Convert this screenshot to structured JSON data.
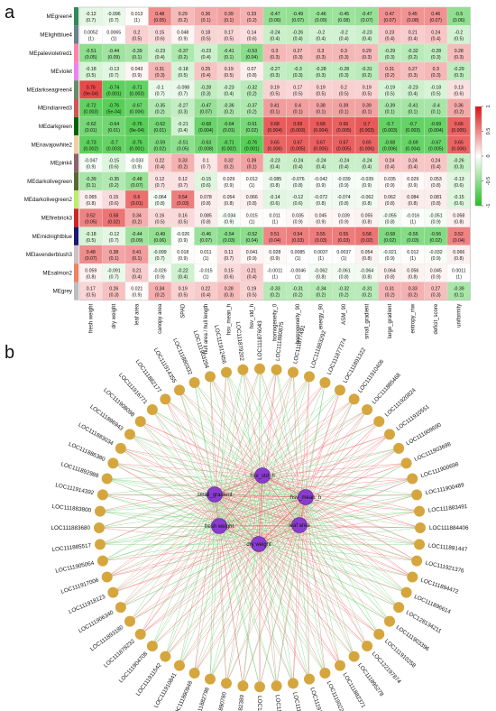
{
  "panels": {
    "a": "a",
    "b": "b"
  },
  "heatmap": {
    "rows": [
      {
        "name": "MEgreen4",
        "color": "#2e8b57"
      },
      {
        "name": "MElightblue4",
        "color": "#68838b"
      },
      {
        "name": "MEpalevioletred1",
        "color": "#ff82ab"
      },
      {
        "name": "MEviolet",
        "color": "#ee82ee"
      },
      {
        "name": "MEdarkseagreen4",
        "color": "#698b69"
      },
      {
        "name": "MEindianred3",
        "color": "#cd5555"
      },
      {
        "name": "MEdarkgreen",
        "color": "#006400"
      },
      {
        "name": "MEnavajowhite2",
        "color": "#eecfa1"
      },
      {
        "name": "MEpink4",
        "color": "#8b636c"
      },
      {
        "name": "MEdarkolivegreen",
        "color": "#556b2f"
      },
      {
        "name": "MEdarkolivegreen2",
        "color": "#bcee68"
      },
      {
        "name": "MEfirebrick3",
        "color": "#cd2626"
      },
      {
        "name": "MEmidnightblue",
        "color": "#191970"
      },
      {
        "name": "MElavenderblush3",
        "color": "#cdc1c5"
      },
      {
        "name": "MEsalmon2",
        "color": "#ee8262"
      },
      {
        "name": "MEgrey",
        "color": "#bebebe"
      }
    ],
    "columns": [
      "fresh weight",
      "dry weight",
      "leaf area",
      "canopy area",
      "SPAD",
      "hull area / hull length",
      "hsv_mean_h",
      "hsv_std_h",
      "homogeneity_0",
      "homogeneity_90",
      "energy_90",
      "ASM_90",
      "small_gradient",
      "large_gradient",
      "entropy_mw",
      "deficit_score",
      "uniformity"
    ],
    "corr": [
      [
        -0.12,
        -0.096,
        0.013,
        0.48,
        0.29,
        0.36,
        0.39,
        0.33,
        -0.47,
        -0.49,
        -0.46,
        -0.45,
        -0.47,
        0.47,
        0.45,
        0.46,
        -0.5
      ],
      [
        0.0052,
        0.0065,
        0.2,
        0.15,
        0.048,
        0.18,
        0.17,
        0.14,
        -0.24,
        -0.26,
        -0.2,
        -0.2,
        -0.23,
        0.23,
        0.21,
        0.24,
        -0.2
      ],
      [
        -0.51,
        -0.44,
        -0.39,
        -0.23,
        -0.37,
        -0.23,
        -0.41,
        -0.53,
        0.3,
        0.27,
        0.3,
        0.3,
        0.29,
        -0.29,
        -0.32,
        -0.28,
        0.28
      ],
      [
        -0.18,
        -0.13,
        0.043,
        0.31,
        -0.18,
        0.25,
        0.19,
        0.07,
        -0.27,
        -0.3,
        -0.28,
        -0.28,
        -0.31,
        0.31,
        0.27,
        0.3,
        -0.29
      ],
      [
        0.76,
        -0.74,
        -0.71,
        -0.1,
        -0.098,
        -0.28,
        -0.23,
        -0.32,
        0.19,
        0.17,
        0.19,
        0.2,
        0.19,
        -0.19,
        -0.23,
        -0.18,
        0.13
      ],
      [
        -0.72,
        -0.76,
        -0.67,
        -0.35,
        -0.27,
        -0.47,
        -0.36,
        -0.37,
        0.41,
        0.4,
        0.38,
        0.39,
        0.39,
        -0.39,
        -0.41,
        -0.4,
        0.36
      ],
      [
        -0.62,
        -0.64,
        -0.76,
        -0.62,
        -0.21,
        -0.68,
        -0.64,
        -0.61,
        0.68,
        0.69,
        0.68,
        0.66,
        0.7,
        -0.7,
        -0.7,
        -0.69,
        0.66
      ],
      [
        -0.73,
        -0.7,
        -0.75,
        -0.59,
        -0.51,
        -0.63,
        -0.71,
        -0.76,
        0.65,
        0.67,
        0.67,
        0.67,
        0.65,
        -0.68,
        -0.69,
        -0.67,
        0.65
      ],
      [
        -0.047,
        -0.15,
        -0.033,
        0.22,
        0.33,
        0.1,
        0.32,
        0.39,
        -0.23,
        -0.24,
        -0.24,
        -0.24,
        -0.24,
        0.24,
        0.24,
        0.24,
        -0.26
      ],
      [
        -0.39,
        -0.35,
        -0.48,
        0.12,
        0.12,
        -0.15,
        0.029,
        0.012,
        -0.085,
        -0.076,
        -0.042,
        -0.039,
        -0.039,
        0.035,
        0.029,
        0.053,
        -0.13
      ],
      [
        0.065,
        0.15,
        0.6,
        -0.064,
        0.54,
        0.078,
        0.054,
        0.066,
        -0.14,
        -0.12,
        -0.072,
        -0.074,
        -0.062,
        0.062,
        0.084,
        0.081,
        -0.15
      ],
      [
        0.52,
        0.58,
        0.34,
        0.16,
        0.16,
        0.085,
        -0.034,
        0.015,
        0.011,
        0.035,
        0.045,
        0.039,
        0.055,
        -0.055,
        -0.016,
        -0.051,
        0.058
      ],
      [
        -0.18,
        -0.12,
        -0.44,
        -0.49,
        -0.026,
        -0.46,
        -0.54,
        -0.52,
        0.51,
        0.54,
        0.55,
        0.55,
        0.58,
        -0.58,
        -0.55,
        -0.56,
        0.52
      ],
      [
        0.48,
        0.38,
        0.41,
        -0.099,
        0.018,
        0.011,
        0.11,
        0.041,
        0.028,
        0.0085,
        0.0037,
        0.0037,
        0.054,
        -0.021,
        0.012,
        -0.032,
        0.066
      ],
      [
        0.059,
        -0.091,
        0.21,
        -0.026,
        -0.22,
        -0.015,
        0.15,
        0.21,
        -0.0011,
        -0.0046,
        -0.062,
        -0.061,
        -0.064,
        0.064,
        0.056,
        0.045,
        0.0011
      ],
      [
        0.17,
        0.26,
        0.021,
        0.34,
        0.19,
        0.22,
        0.28,
        0.19,
        -0.33,
        -0.31,
        -0.34,
        -0.32,
        -0.31,
        0.31,
        0.33,
        0.27,
        -0.39
      ]
    ],
    "pvals": [
      [
        "(0.7)",
        "(0.7)",
        "(1)",
        "(0.05)",
        "(0.2)",
        "(0.1)",
        "(0.1)",
        "(0.2)",
        "(0.06)",
        "(0.07)",
        "(0.09)",
        "(0.08)",
        "(0.07)",
        "(0.07)",
        "(0.08)",
        "(0.07)",
        "(0.06)"
      ],
      [
        "(1)",
        "(1)",
        "(0.5)",
        "(0.6)",
        "(0.9)",
        "(0.5)",
        "(0.5)",
        "(0.6)",
        "(0.4)",
        "(0.4)",
        "(0.4)",
        "(0.4)",
        "(0.4)",
        "(0.4)",
        "(0.4)",
        "(0.4)",
        "(0.5)"
      ],
      [
        "(0.05)",
        "(0.09)",
        "(0.1)",
        "(0.4)",
        "(0.2)",
        "(0.4)",
        "(0.1)",
        "(0.04)",
        "(0.3)",
        "(0.3)",
        "(0.3)",
        "(0.3)",
        "(0.3)",
        "(0.3)",
        "(0.2)",
        "(0.3)",
        "(0.3)"
      ],
      [
        "(0.5)",
        "(0.7)",
        "(0.9)",
        "(0.3)",
        "(0.5)",
        "(0.4)",
        "(0.5)",
        "(0.8)",
        "(0.3)",
        "(0.3)",
        "(0.3)",
        "(0.3)",
        "(0.2)",
        "(0.2)",
        "(0.3)",
        "(0.3)",
        "(0.3)"
      ],
      [
        "(9e-04)",
        "(0.001)",
        "(0.003)",
        "(0.7)",
        "(0.7)",
        "(0.3)",
        "(0.4)",
        "(0.2)",
        "(0.5)",
        "(0.5)",
        "(0.5)",
        "(0.5)",
        "(0.5)",
        "(0.5)",
        "(0.4)",
        "(0.5)",
        "(0.6)"
      ],
      [
        "(0.003)",
        "(5e-04)",
        "(0.006)",
        "(0.2)",
        "(0.3)",
        "(0.07)",
        "(0.2)",
        "(0.2)",
        "(0.1)",
        "(0.1)",
        "(0.1)",
        "(0.1)",
        "(0.1)",
        "(0.1)",
        "(0.1)",
        "(0.1)",
        "(0.2)"
      ],
      [
        "(0.01)",
        "(0.01)",
        "(9e-04)",
        "(0.01)",
        "(0.4)",
        "(0.004)",
        "(0.01)",
        "(0.02)",
        "(0.004)",
        "(0.003)",
        "(0.004)",
        "(0.005)",
        "(0.003)",
        "(0.003)",
        "(0.003)",
        "(0.004)",
        "(0.005)"
      ],
      [
        "(0.002)",
        "(0.003)",
        "(0.001)",
        "(0.02)",
        "(0.05)",
        "(0.008)",
        "(0.002)",
        "(0.001)",
        "(0.006)",
        "(0.005)",
        "(0.005)",
        "(0.005)",
        "(0.006)",
        "(0.006)",
        "(0.004)",
        "(0.005)",
        "(0.006)"
      ],
      [
        "(0.9)",
        "(0.6)",
        "(0.9)",
        "(0.4)",
        "(0.2)",
        "(0.7)",
        "(0.2)",
        "(0.1)",
        "(0.4)",
        "(0.4)",
        "(0.4)",
        "(0.4)",
        "(0.4)",
        "(0.4)",
        "(0.4)",
        "(0.4)",
        "(0.3)"
      ],
      [
        "(0.1)",
        "(0.2)",
        "(0.07)",
        "(0.7)",
        "(0.7)",
        "(0.6)",
        "(0.9)",
        "(1)",
        "(0.8)",
        "(0.8)",
        "(0.9)",
        "(0.9)",
        "(0.9)",
        "(0.9)",
        "(0.9)",
        "(0.8)",
        "(0.6)"
      ],
      [
        "(0.8)",
        "(0.6)",
        "(0.01)",
        "(0.8)",
        "(0.03)",
        "(0.8)",
        "(0.8)",
        "(0.8)",
        "(0.6)",
        "(0.6)",
        "(0.8)",
        "(0.8)",
        "(0.8)",
        "(0.8)",
        "(0.8)",
        "(0.8)",
        "(0.6)"
      ],
      [
        "(0.05)",
        "(0.02)",
        "(0.2)",
        "(0.5)",
        "(0.5)",
        "(0.8)",
        "(0.9)",
        "(1)",
        "(1)",
        "(0.9)",
        "(0.9)",
        "(0.9)",
        "(0.8)",
        "(0.8)",
        "(1)",
        "(0.9)",
        "(0.8)"
      ],
      [
        "(0.5)",
        "(0.7)",
        "(0.09)",
        "(0.06)",
        "(0.9)",
        "(0.07)",
        "(0.03)",
        "(0.04)",
        "(0.04)",
        "(0.03)",
        "(0.03)",
        "(0.03)",
        "(0.02)",
        "(0.02)",
        "(0.03)",
        "(0.02)",
        "(0.04)"
      ],
      [
        "(0.07)",
        "(0.1)",
        "(0.1)",
        "(0.7)",
        "(0.9)",
        "(1)",
        "(0.7)",
        "(0.9)",
        "(0.9)",
        "(1)",
        "(1)",
        "(1)",
        "(0.8)",
        "(0.9)",
        "(1)",
        "(0.9)",
        "(0.8)"
      ],
      [
        "(0.8)",
        "(0.7)",
        "(0.4)",
        "(0.9)",
        "(0.4)",
        "(1)",
        "(0.6)",
        "(0.4)",
        "(1)",
        "(1)",
        "(0.8)",
        "(0.8)",
        "(0.8)",
        "(0.8)",
        "(0.8)",
        "(0.9)",
        "(1)"
      ],
      [
        "(0.5)",
        "(0.3)",
        "(0.9)",
        "(0.2)",
        "(0.5)",
        "(0.4)",
        "(0.3)",
        "(0.5)",
        "(0.2)",
        "(0.2)",
        "(0.2)",
        "(0.2)",
        "(0.2)",
        "(0.2)",
        "(0.2)",
        "(0.3)",
        "(0.1)"
      ]
    ],
    "colorbar_ticks": [
      "1",
      "0.5",
      "0",
      "-0.5",
      "-1"
    ],
    "colors": {
      "positive": "#e01010",
      "neutral": "#ffffff",
      "negative": "#22c022"
    }
  },
  "chart_data": [
    {
      "type": "heatmap",
      "title": "",
      "x": [
        "fresh weight",
        "dry weight",
        "leaf area",
        "canopy area",
        "SPAD",
        "hull area / hull length",
        "hsv_mean_h",
        "hsv_std_h",
        "homogeneity_0",
        "homogeneity_90",
        "energy_90",
        "ASM_90",
        "small_gradient",
        "large_gradient",
        "entropy_mw",
        "deficit_score",
        "uniformity"
      ],
      "y": [
        "MEgreen4",
        "MElightblue4",
        "MEpalevioletred1",
        "MEviolet",
        "MEdarkseagreen4",
        "MEindianred3",
        "MEdarkgreen",
        "MEnavajowhite2",
        "MEpink4",
        "MEdarkolivegreen",
        "MEdarkolivegreen2",
        "MEfirebrick3",
        "MEmidnightblue",
        "MElavenderblush3",
        "MEsalmon2",
        "MEgrey"
      ],
      "value_range": [
        -1,
        1
      ]
    },
    {
      "type": "network",
      "layout": "circular",
      "hub_nodes": [
        "hsv_std_h",
        "small_gradient",
        "hsv_mean_h",
        "fresh weight",
        "leaf area",
        "dry weight"
      ],
      "edge_colors": {
        "positive": "#e05050",
        "negative": "#50c050"
      }
    }
  ],
  "network": {
    "hubs": [
      "hsv_std_h",
      "small_gradient",
      "hsv_mean_h",
      "fresh weight",
      "leaf area",
      "dry weight"
    ],
    "genes": [
      "LOC111876043",
      "LOC111880875",
      "LOC111877491",
      "LOC111883292",
      "LOC111877374",
      "LOC111891322",
      "LOC111910406",
      "LOC111885468",
      "LOC111920824",
      "LOC111910551",
      "LOC111909690",
      "LOC111903698",
      "LOC111900698",
      "LOC111900489",
      "LOC111883491",
      "LOC111884406",
      "LOC111891447",
      "LOC111921376",
      "LOC111894472",
      "LOC111896614",
      "LOC128134211",
      "LOC111903396",
      "LOC111910258",
      "LOC122197874",
      "LOC111895278",
      "LOC111882371",
      "LOC111902289",
      "LOC111910463",
      "LOC111901357",
      "LOC111896098",
      "LOC111890620",
      "LOC111882389",
      "LOC111890780",
      "LOC111882798",
      "LOC111890948",
      "LOC111910841",
      "LOC111911542",
      "LOC111904708",
      "LOC111878232",
      "LOC111893180",
      "LOC111906340",
      "LOC111918123",
      "LOC111917006",
      "LOC111905064",
      "LOC111885517",
      "LOC111883680",
      "LOC111883800",
      "LOC111914392",
      "LOC111892988",
      "LOC111886380",
      "LOC111883034",
      "LOC111896943",
      "LOC111908098",
      "LOC111916771",
      "LOC111882177",
      "LOC111914355",
      "LOC111880332",
      "LOC111903294",
      "LOC111912456",
      "LOC111879202"
    ]
  }
}
